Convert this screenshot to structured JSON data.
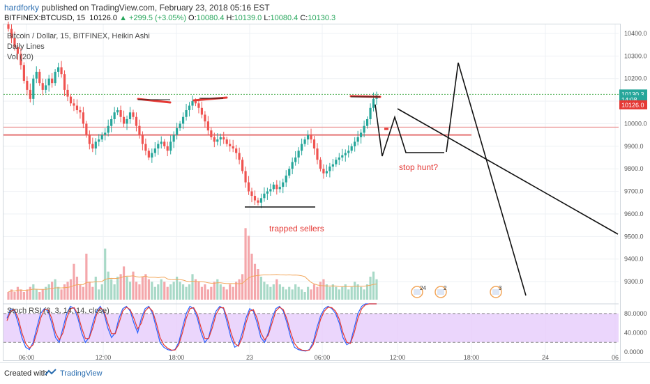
{
  "header": {
    "author": "hardforky",
    "published": "published on TradingView.com, February 23, 2018 05:16 EST",
    "symbol": "BITFINEX:BTCUSD, 15",
    "last": "10126.0",
    "change": "▲ +299.5 (+3.05%)",
    "o_label": "O:",
    "o_val": "10080.4",
    "h_label": "H:",
    "h_val": "10139.0",
    "l_label": "L:",
    "l_val": "10080.4",
    "c_label": "C:",
    "c_val": "10130.3"
  },
  "legend": {
    "title": "Bitcoin / Dollar, 15, BITFINEX, Heikin Ashi",
    "line2": "Daily Lines",
    "line3": "Vol (20)",
    "stoch": "Stoch RSI (3, 3, 14, 14, close)"
  },
  "annotations": {
    "stop_hunt": "stop hunt?",
    "trapped": "trapped sellers"
  },
  "badges": [
    "24",
    "2",
    "3"
  ],
  "footer": {
    "created": "Created with",
    "brand": "TradingView"
  },
  "colors": {
    "up": "#26a69a",
    "down": "#ef5350",
    "up_light": "#a8d9c7",
    "down_light": "#f4a7ab",
    "stoch_bg": "#e6ccfb",
    "accent": "#e53935"
  },
  "chart_data": [
    {
      "type": "candlestick",
      "title": "Bitcoin / Dollar, 15, BITFINEX, Heikin Ashi",
      "ylim": [
        9220,
        10440
      ],
      "y_ticks": [
        "10400.0",
        "10300.0",
        "10200.0",
        "10100.0",
        "10000.0",
        "9900.0",
        "9800.0",
        "9700.0",
        "9600.0",
        "9500.0",
        "9400.0",
        "9300.0"
      ],
      "x_ticks": [
        "06:00",
        "12:00",
        "18:00",
        "23",
        "06:00",
        "12:00",
        "18:00",
        "24",
        "06"
      ],
      "price_labels": [
        "10130.3",
        "14:08",
        "10126.0"
      ],
      "close": [
        10420,
        10380,
        10340,
        10310,
        10260,
        10190,
        10150,
        10110,
        10200,
        10230,
        10180,
        10150,
        10170,
        10200,
        10180,
        10230,
        10250,
        10220,
        10150,
        10120,
        10090,
        10080,
        10060,
        10050,
        10000,
        9950,
        9910,
        9890,
        9920,
        9930,
        9950,
        9960,
        9990,
        10020,
        10050,
        10060,
        10030,
        10000,
        10020,
        10050,
        10030,
        9990,
        9950,
        9910,
        9880,
        9850,
        9870,
        9890,
        9910,
        9920,
        9900,
        9880,
        9920,
        9950,
        9980,
        10000,
        10030,
        10060,
        10080,
        10100,
        10090,
        10070,
        10040,
        10010,
        9970,
        9940,
        9920,
        9930,
        9940,
        9930,
        9910,
        9900,
        9890,
        9870,
        9840,
        9790,
        9740,
        9700,
        9680,
        9660,
        9650,
        9670,
        9690,
        9700,
        9710,
        9730,
        9710,
        9720,
        9740,
        9770,
        9800,
        9830,
        9850,
        9880,
        9910,
        9930,
        9950,
        9930,
        9890,
        9840,
        9800,
        9780,
        9790,
        9810,
        9820,
        9840,
        9850,
        9860,
        9870,
        9880,
        9900,
        9920,
        9940,
        9960,
        9990,
        10020,
        10070,
        10110,
        10126
      ]
    },
    {
      "type": "bar",
      "title": "Vol (20)",
      "values": [
        3,
        4,
        3,
        5,
        4,
        3,
        4,
        5,
        6,
        4,
        3,
        4,
        5,
        6,
        7,
        8,
        5,
        4,
        6,
        7,
        8,
        14,
        9,
        6,
        5,
        18,
        7,
        5,
        9,
        4,
        6,
        20,
        11,
        8,
        6,
        9,
        10,
        13,
        9,
        7,
        11,
        7,
        6,
        9,
        10,
        8,
        7,
        5,
        6,
        8,
        7,
        5,
        6,
        7,
        9,
        7,
        6,
        5,
        6,
        10,
        8,
        7,
        5,
        6,
        4,
        5,
        7,
        8,
        6,
        5,
        4,
        6,
        5,
        7,
        8,
        10,
        28,
        25,
        18,
        14,
        12,
        9,
        7,
        6,
        5,
        6,
        8,
        6,
        5,
        4,
        5,
        4,
        6,
        5,
        4,
        3,
        5,
        4,
        6,
        5,
        7,
        8,
        6,
        5,
        6,
        5,
        4,
        5,
        6,
        4,
        5,
        7,
        6,
        5,
        4,
        6,
        9,
        11,
        8
      ]
    },
    {
      "type": "line",
      "title": "Stoch RSI (3, 3, 14, 14, close)",
      "ylim": [
        -10,
        100
      ],
      "y_ticks": [
        "80.0000",
        "40.0000",
        "0.0000"
      ],
      "series": [
        {
          "values": [
            70,
            90,
            85,
            60,
            30,
            10,
            5,
            20,
            50,
            80,
            90,
            85,
            60,
            30,
            20,
            50,
            80,
            95,
            90,
            70,
            40,
            20,
            30,
            60,
            85,
            95,
            80,
            50,
            30,
            40,
            70,
            90,
            95,
            85,
            60,
            40,
            70,
            90,
            95,
            80,
            50,
            20,
            10,
            5,
            3,
            5,
            20,
            50,
            80,
            95,
            90,
            70,
            40,
            20,
            30,
            60,
            85,
            95,
            90,
            60,
            30,
            10,
            15,
            40,
            70,
            90,
            85,
            60,
            30,
            20,
            40,
            70,
            90,
            95,
            85,
            60,
            30,
            10,
            5,
            3,
            2,
            5,
            20,
            50,
            75,
            90,
            95,
            90,
            80,
            60,
            30,
            15,
            20,
            50,
            80,
            95,
            100,
            100,
            100,
            100
          ]
        },
        {
          "values": [
            65,
            85,
            88,
            70,
            40,
            18,
            8,
            15,
            40,
            70,
            88,
            88,
            70,
            40,
            25,
            40,
            70,
            90,
            92,
            78,
            50,
            28,
            28,
            50,
            78,
            92,
            85,
            60,
            38,
            38,
            60,
            85,
            93,
            88,
            70,
            48,
            60,
            85,
            93,
            85,
            60,
            30,
            15,
            8,
            4,
            4,
            15,
            40,
            70,
            90,
            92,
            78,
            50,
            28,
            28,
            50,
            78,
            92,
            92,
            70,
            40,
            18,
            12,
            30,
            60,
            85,
            88,
            70,
            40,
            25,
            35,
            60,
            85,
            93,
            88,
            68,
            40,
            18,
            8,
            4,
            3,
            4,
            15,
            40,
            68,
            85,
            93,
            92,
            85,
            68,
            40,
            20,
            18,
            40,
            70,
            90,
            98,
            100,
            100,
            100
          ]
        }
      ]
    }
  ]
}
